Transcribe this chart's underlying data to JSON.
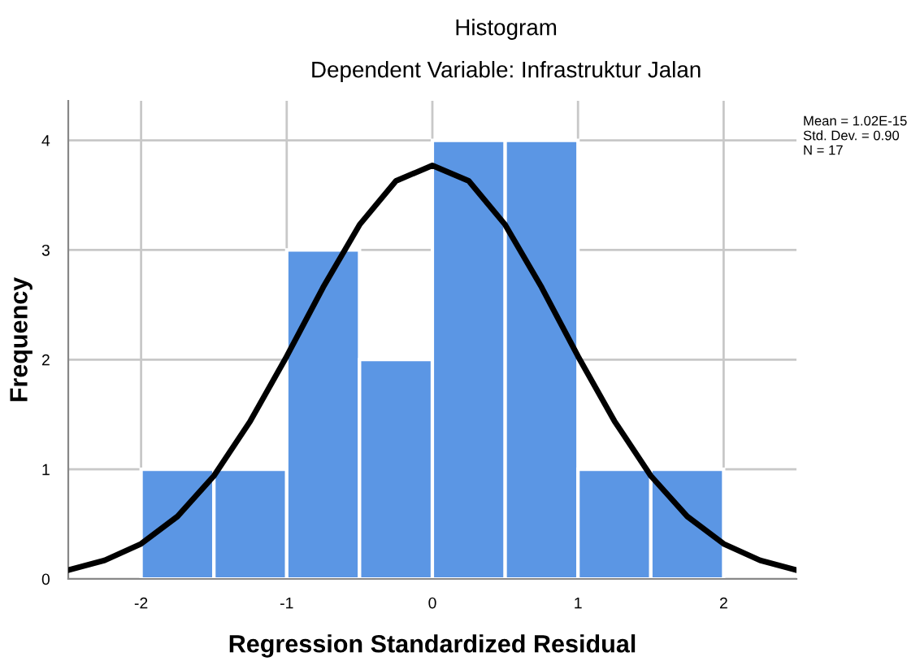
{
  "chart_data": {
    "type": "histogram",
    "title": "Histogram",
    "subtitle": "Dependent Variable: Infrastruktur Jalan",
    "xlabel": "Regression Standardized Residual",
    "ylabel": "Frequency",
    "bins": [
      -2,
      -1.5,
      -1,
      -0.5,
      0,
      0.5,
      1,
      1.5,
      2
    ],
    "values": [
      1,
      1,
      3,
      2,
      4,
      4,
      1,
      1
    ],
    "color": "#5b96e4",
    "series": [
      {
        "type": "line",
        "color": "#000000",
        "x": [
          -2.5,
          -2.25,
          -2,
          -1.75,
          -1.5,
          -1.25,
          -1,
          -0.75,
          -0.5,
          -0.25,
          0,
          0.25,
          0.5,
          0.75,
          1,
          1.25,
          1.5,
          1.75,
          2,
          2.25,
          2.5
        ],
        "values": [
          0.08,
          0.17,
          0.32,
          0.57,
          0.94,
          1.44,
          2.03,
          2.66,
          3.23,
          3.63,
          3.77,
          3.63,
          3.23,
          2.66,
          2.03,
          1.44,
          0.94,
          0.57,
          0.32,
          0.17,
          0.08
        ]
      }
    ],
    "xlim": [
      -2.5,
      2.5
    ],
    "ylim": [
      0,
      4.36
    ],
    "xticks": [
      -2,
      -1,
      0,
      1,
      2
    ],
    "yticks": [
      0,
      1,
      2,
      3,
      4
    ],
    "grid": true,
    "annotations": [
      "Mean = 1.02E-15",
      "Std. Dev. = 0.90",
      "N = 17"
    ]
  }
}
